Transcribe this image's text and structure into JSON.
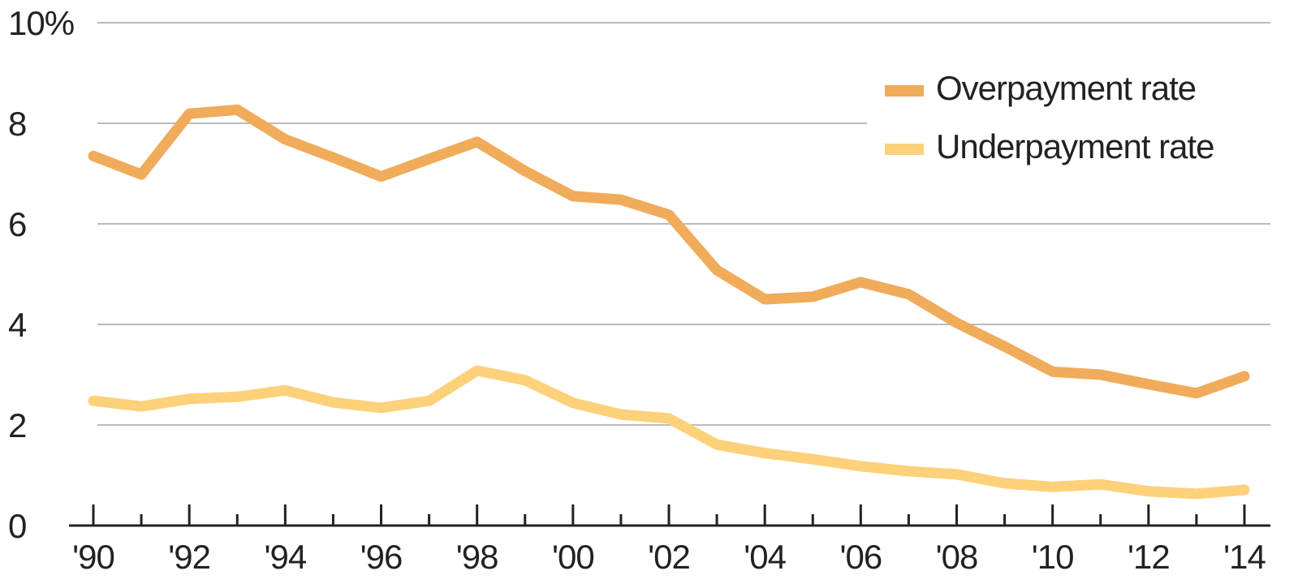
{
  "chart_data": {
    "type": "line",
    "categories": [
      "'90",
      null,
      "'92",
      null,
      "'94",
      null,
      "'96",
      null,
      "'98",
      null,
      "'00",
      null,
      "'02",
      null,
      "'04",
      null,
      "'06",
      null,
      "'08",
      null,
      "'10",
      null,
      "'12",
      null,
      "'14"
    ],
    "series": [
      {
        "name": "Overpayment rate",
        "color": "#f0ab5b",
        "values": [
          7.35,
          6.98,
          8.19,
          8.27,
          7.68,
          7.32,
          6.94,
          7.29,
          7.63,
          7.05,
          6.55,
          6.48,
          6.18,
          5.08,
          4.5,
          4.55,
          4.84,
          4.6,
          4.03,
          3.56,
          3.06,
          3.0,
          2.81,
          2.63,
          2.97
        ]
      },
      {
        "name": "Underpayment rate",
        "color": "#fdd07a",
        "values": [
          2.48,
          2.37,
          2.52,
          2.56,
          2.69,
          2.45,
          2.34,
          2.48,
          3.08,
          2.89,
          2.44,
          2.21,
          2.13,
          1.61,
          1.44,
          1.32,
          1.18,
          1.08,
          1.02,
          0.84,
          0.77,
          0.82,
          0.68,
          0.63,
          0.71
        ]
      }
    ],
    "ylim": [
      0,
      10
    ],
    "yticks": [
      0,
      2,
      4,
      6,
      8,
      {
        "value": 10,
        "label": "10%"
      }
    ],
    "grid": true,
    "legend": "upper right"
  }
}
